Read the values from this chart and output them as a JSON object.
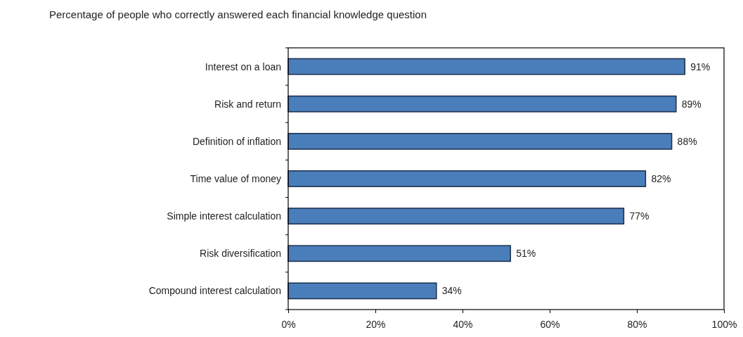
{
  "chart_data": {
    "type": "bar",
    "orientation": "horizontal",
    "title": "Percentage of people who correctly answered each financial knowledge question",
    "categories": [
      "Interest on a loan",
      "Risk and return",
      "Definition of inflation",
      "Time value of money",
      "Simple interest calculation",
      "Risk diversification",
      "Compound interest calculation"
    ],
    "values": [
      91,
      89,
      88,
      82,
      77,
      51,
      34
    ],
    "value_labels": [
      "91%",
      "89%",
      "88%",
      "82%",
      "77%",
      "51%",
      "34%"
    ],
    "color": "#4a7ebb",
    "xlim": [
      0,
      100
    ],
    "xticks": [
      {
        "value": 0,
        "label": "0%"
      },
      {
        "value": 20,
        "label": "20%"
      },
      {
        "value": 40,
        "label": "40%"
      },
      {
        "value": 60,
        "label": "60%"
      },
      {
        "value": 80,
        "label": "80%"
      },
      {
        "value": 100,
        "label": "100%"
      }
    ],
    "grid": false
  }
}
